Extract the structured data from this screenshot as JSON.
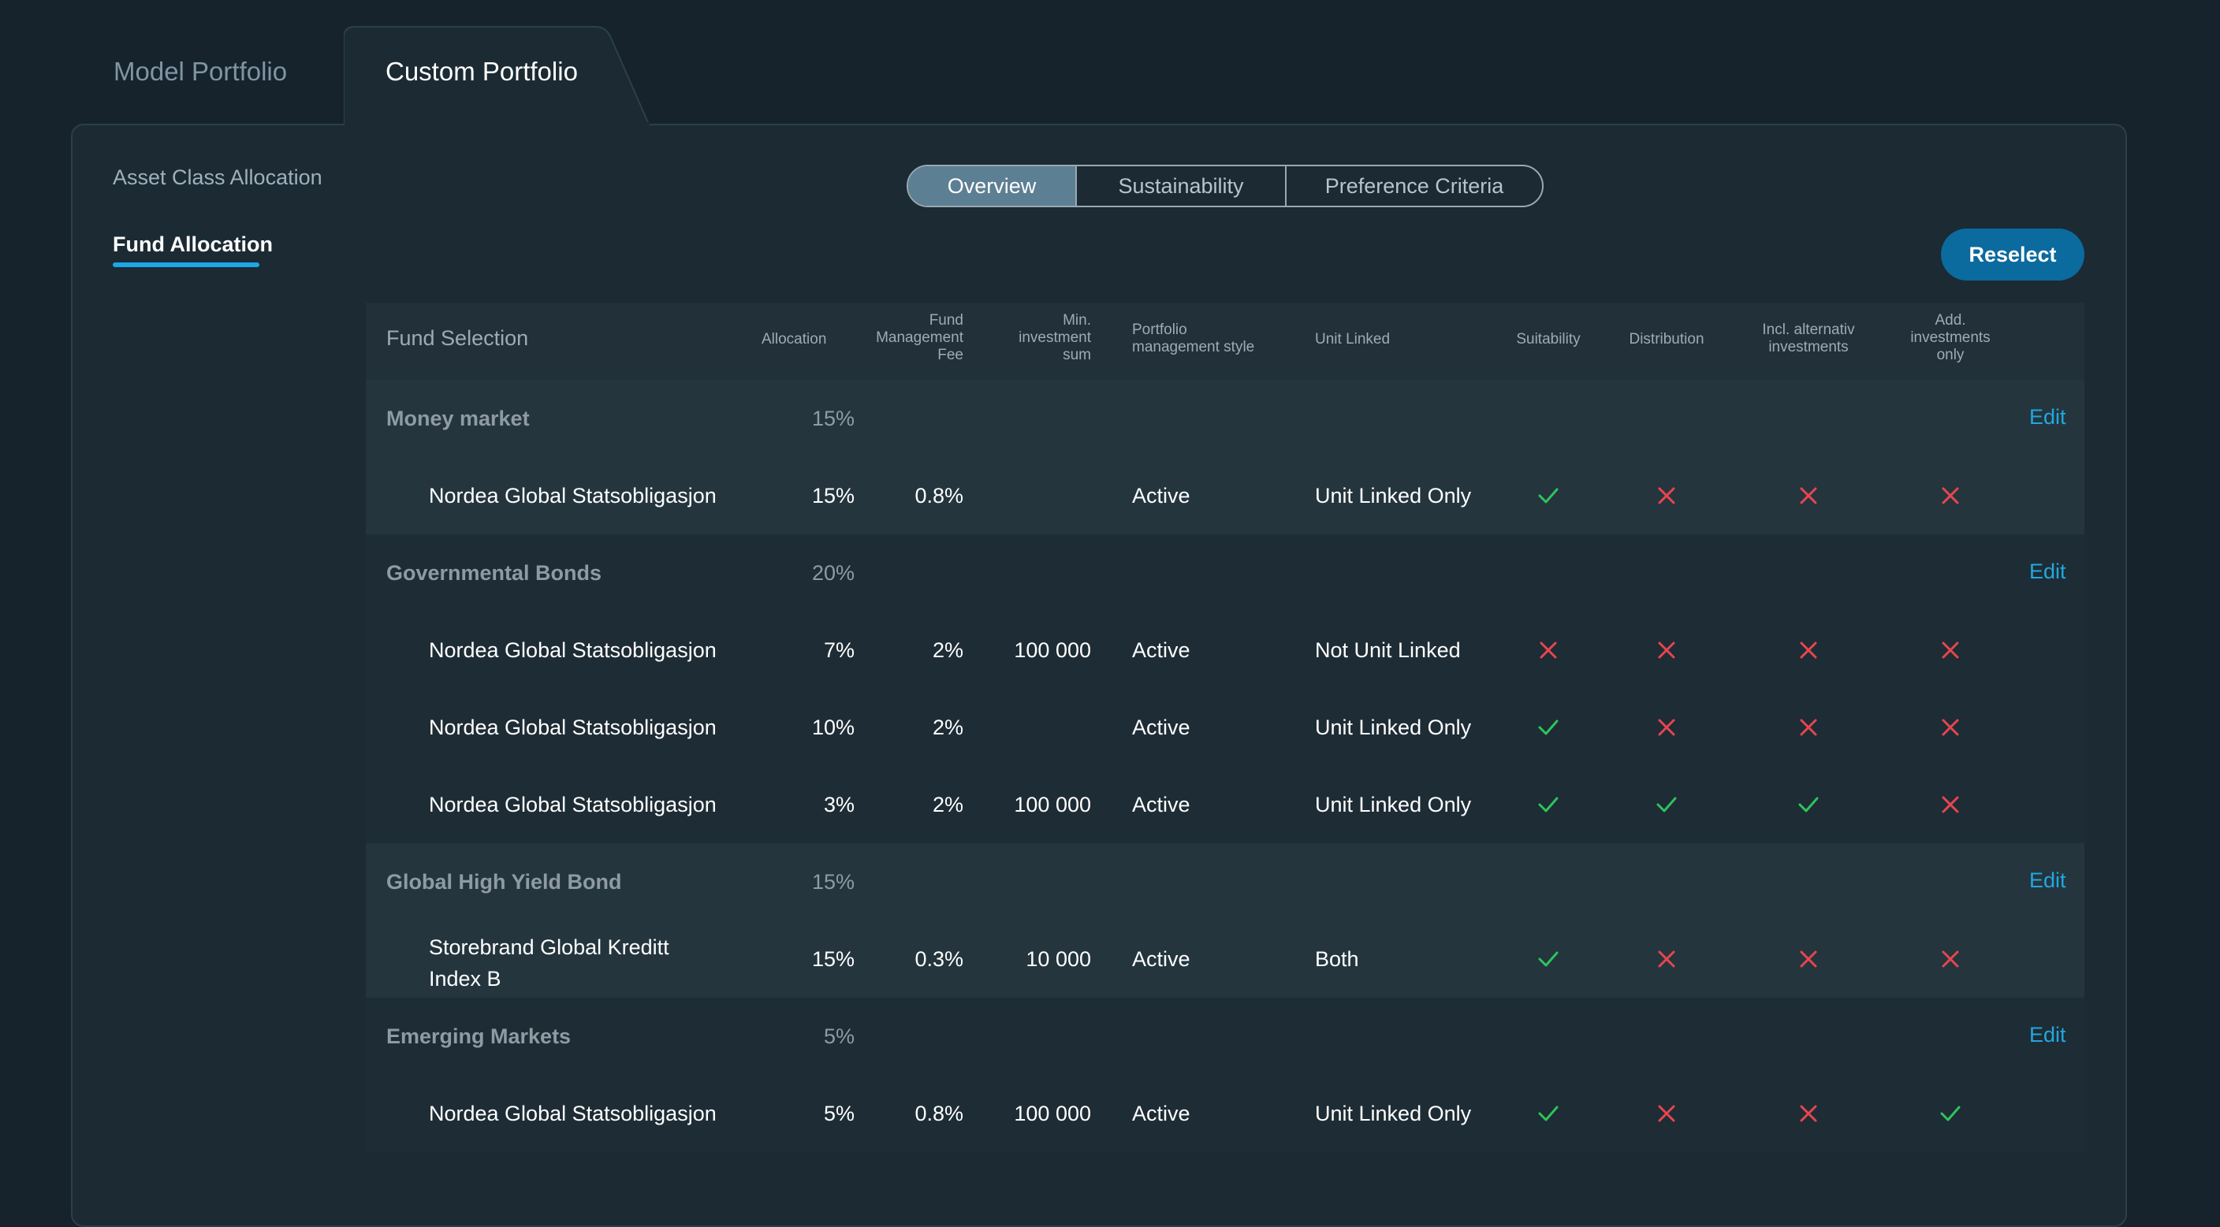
{
  "tabs": {
    "model": "Model Portfolio",
    "custom": "Custom Portfolio"
  },
  "left_nav": {
    "asset": "Asset Class Allocation",
    "fund": "Fund Allocation"
  },
  "segmented": {
    "overview": "Overview",
    "sustainability": "Sustainability",
    "preference": "Preference Criteria"
  },
  "reselect_label": "Reselect",
  "headers": {
    "fund_selection": "Fund Selection",
    "allocation": "Allocation",
    "fee_1": "Fund",
    "fee_2": "Management",
    "fee_3": "Fee",
    "min_1": "Min.",
    "min_2": "investment",
    "min_3": "sum",
    "style_1": "Portfolio",
    "style_2": "management style",
    "unit_linked": "Unit Linked",
    "suitability": "Suitability",
    "distribution": "Distribution",
    "alt_1": "Incl. alternativ",
    "alt_2": "investments",
    "add_1": "Add.",
    "add_2": "investments",
    "add_3": "only"
  },
  "edit_label": "Edit",
  "colors": {
    "check": "#2ec45a",
    "cross": "#e8454f",
    "accent": "#22a7e0"
  },
  "groups": [
    {
      "name": "Money market",
      "allocation": "15%",
      "funds": [
        {
          "name": "Nordea Global Statsobligasjon",
          "allocation": "15%",
          "fee": "0.8%",
          "min": "",
          "style": "Active",
          "unit": "Unit Linked Only",
          "suitability": "check",
          "distribution": "cross",
          "alt": "cross",
          "add": "cross"
        }
      ]
    },
    {
      "name": "Governmental Bonds",
      "allocation": "20%",
      "funds": [
        {
          "name": "Nordea Global Statsobligasjon",
          "allocation": "7%",
          "fee": "2%",
          "min": "100 000",
          "style": "Active",
          "unit": "Not Unit Linked",
          "suitability": "cross",
          "distribution": "cross",
          "alt": "cross",
          "add": "cross"
        },
        {
          "name": "Nordea Global Statsobligasjon",
          "allocation": "10%",
          "fee": "2%",
          "min": "",
          "style": "Active",
          "unit": "Unit Linked Only",
          "suitability": "check",
          "distribution": "cross",
          "alt": "cross",
          "add": "cross"
        },
        {
          "name": "Nordea Global Statsobligasjon",
          "allocation": "3%",
          "fee": "2%",
          "min": "100 000",
          "style": "Active",
          "unit": "Unit Linked Only",
          "suitability": "check",
          "distribution": "check",
          "alt": "check",
          "add": "cross"
        }
      ]
    },
    {
      "name": "Global High Yield Bond",
      "allocation": "15%",
      "funds": [
        {
          "name_1": "Storebrand Global Kreditt",
          "name_2": "Index B",
          "allocation": "15%",
          "fee": "0.3%",
          "min": "10 000",
          "style": "Active",
          "unit": "Both",
          "suitability": "check",
          "distribution": "cross",
          "alt": "cross",
          "add": "cross"
        }
      ]
    },
    {
      "name": "Emerging Markets",
      "allocation": "5%",
      "funds": [
        {
          "name": "Nordea Global Statsobligasjon",
          "allocation": "5%",
          "fee": "0.8%",
          "min": "100 000",
          "style": "Active",
          "unit": "Unit Linked Only",
          "suitability": "check",
          "distribution": "cross",
          "alt": "cross",
          "add": "check"
        }
      ]
    }
  ]
}
